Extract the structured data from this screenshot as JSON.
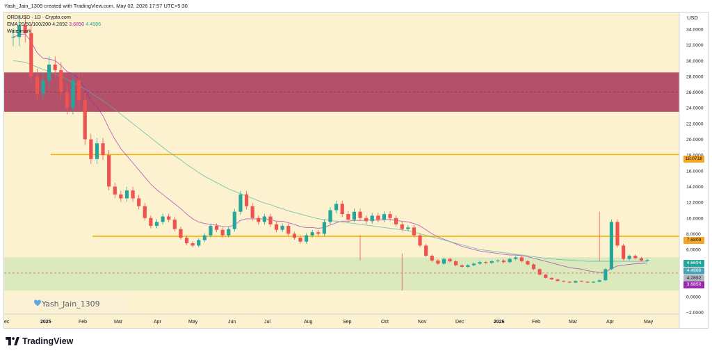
{
  "header": {
    "text": "Yash_Jain_1309 created with TradingView.com, May 02, 2026 17:57 UTC+5:30"
  },
  "legend": {
    "symbol_line": "ORDIUSD · 1D · Crypto.com",
    "ema_label": "EMA 20/50/100/200",
    "ema_values": [
      "4.2892",
      "3.6850",
      "4.4986"
    ],
    "watermark_line": "Watermark"
  },
  "axis": {
    "currency": "USD",
    "y_ticks": [
      "34.0000",
      "32.0000",
      "30.0000",
      "28.0000",
      "26.0000",
      "24.0000",
      "22.0000",
      "20.0000",
      "18.0000",
      "16.0000",
      "14.0000",
      "12.0000",
      "10.0000",
      "8.0000",
      "6.0000",
      "4.0000",
      "2.0000",
      "0.0000",
      "−2.0000"
    ],
    "x_ticks": [
      "ec",
      "2025",
      "Feb",
      "Mar",
      "Apr",
      "May",
      "Jun",
      "Jul",
      "Aug",
      "Sep",
      "Oct",
      "Nov",
      "Dec",
      "2026",
      "Feb",
      "Mar",
      "Apr",
      "May"
    ]
  },
  "price_tags": [
    {
      "label": "18.0718",
      "color": "#f5a623",
      "text_color": "#131722"
    },
    {
      "label": "7.6809",
      "color": "#f5a623",
      "text_color": "#131722"
    },
    {
      "label": "4.6694",
      "color": "#26a69a",
      "text_color": "#ffffff"
    },
    {
      "label": "4.4986",
      "color": "#4aa3b5",
      "text_color": "#ffffff"
    },
    {
      "label": "4.2892",
      "color": "#b2b5be",
      "text_color": "#131722"
    },
    {
      "label": "3.6850",
      "color": "#9c27b0",
      "text_color": "#ffffff"
    }
  ],
  "watermark": {
    "text": "Yash_Jain_1309"
  },
  "brand": {
    "text": "TradingView"
  },
  "colors": {
    "background": "#fdf2d0",
    "resistance_zone": "#b5506a",
    "support_zone": "#d6e8b8",
    "level_line": "#f5b301",
    "candle_up": "#26a69a",
    "candle_down": "#ef5350"
  },
  "chart_data": {
    "type": "candlestick",
    "y_range": [
      -2,
      35
    ],
    "resistance_zone": [
      23.5,
      28.5
    ],
    "support_zone": [
      0.8,
      5.0
    ],
    "horizontal_levels": [
      18.0718,
      7.6809,
      3.0
    ],
    "close_series": [
      33.0,
      34.5,
      33.5,
      28.0,
      25.8,
      27.5,
      29.5,
      28.8,
      26.0,
      24.0,
      27.5,
      25.0,
      20.0,
      17.5,
      19.5,
      18.0,
      14.0,
      13.0,
      12.5,
      13.5,
      12.5,
      11.5,
      10.0,
      9.0,
      9.5,
      10.2,
      9.8,
      8.6,
      7.5,
      6.8,
      6.5,
      7.2,
      7.8,
      9.0,
      8.5,
      7.8,
      8.6,
      10.8,
      13.0,
      11.5,
      10.0,
      9.5,
      10.2,
      9.2,
      8.5,
      9.0,
      8.0,
      7.5,
      7.0,
      7.8,
      8.2,
      8.0,
      9.5,
      11.0,
      11.8,
      10.5,
      9.8,
      10.8,
      10.0,
      9.6,
      10.3,
      9.8,
      10.5,
      10.0,
      9.2,
      8.6,
      8.8,
      7.8,
      6.5,
      5.2,
      4.6,
      4.2,
      4.8,
      4.5,
      4.0,
      3.8,
      4.0,
      4.2,
      4.4,
      4.3,
      4.5,
      4.6,
      4.4,
      4.8,
      5.0,
      4.5,
      4.1,
      3.5,
      2.8,
      2.4,
      2.2,
      2.0,
      1.9,
      1.8,
      2.0,
      1.9,
      1.8,
      1.9,
      2.1,
      3.5,
      9.5,
      6.5,
      4.8,
      5.2,
      4.9,
      4.6,
      4.67
    ],
    "ema_20_series": [
      33.0,
      33.3,
      33.4,
      32.4,
      31.0,
      30.3,
      30.2,
      30.0,
      29.4,
      28.6,
      28.3,
      27.7,
      26.4,
      24.9,
      24.1,
      23.0,
      21.4,
      20.0,
      18.8,
      17.9,
      17.0,
      16.1,
      15.2,
      14.3,
      13.6,
      13.0,
      12.4,
      11.8,
      11.2,
      10.5,
      9.9,
      9.5,
      9.3,
      9.2,
      9.1,
      8.9,
      8.9,
      9.1,
      9.7,
      9.9,
      9.9,
      9.9,
      9.9,
      9.8,
      9.6,
      9.6,
      9.4,
      9.2,
      8.9,
      8.8,
      8.8,
      8.7,
      8.8,
      9.1,
      9.4,
      9.6,
      9.6,
      9.7,
      9.7,
      9.7,
      9.8,
      9.7,
      9.8,
      9.8,
      9.7,
      9.6,
      9.5,
      9.3,
      9.0,
      8.5,
      8.0,
      7.6,
      7.3,
      7.0,
      6.7,
      6.4,
      6.2,
      6.0,
      5.8,
      5.7,
      5.6,
      5.5,
      5.4,
      5.3,
      5.3,
      5.2,
      5.1,
      4.9,
      4.7,
      4.5,
      4.3,
      4.1,
      3.9,
      3.7,
      3.6,
      3.5,
      3.3,
      3.2,
      3.1,
      3.1,
      3.6,
      3.9,
      4.0,
      4.1,
      4.2,
      4.24,
      4.29
    ],
    "ema_200_series": [
      30.0,
      29.9,
      29.8,
      29.5,
      29.2,
      28.9,
      28.6,
      28.3,
      28.0,
      27.6,
      27.2,
      26.8,
      26.4,
      25.9,
      25.4,
      24.9,
      24.4,
      23.8,
      23.2,
      22.6,
      22.0,
      21.4,
      20.8,
      20.2,
      19.6,
      19.0,
      18.4,
      17.9,
      17.4,
      16.8,
      16.3,
      15.8,
      15.3,
      14.9,
      14.5,
      14.1,
      13.7,
      13.4,
      13.1,
      12.8,
      12.5,
      12.2,
      11.9,
      11.7,
      11.4,
      11.2,
      10.9,
      10.7,
      10.5,
      10.3,
      10.1,
      9.9,
      9.8,
      9.7,
      9.6,
      9.5,
      9.4,
      9.3,
      9.2,
      9.1,
      9.0,
      8.9,
      8.8,
      8.7,
      8.6,
      8.5,
      8.4,
      8.2,
      8.0,
      7.8,
      7.6,
      7.4,
      7.2,
      7.0,
      6.8,
      6.6,
      6.4,
      6.2,
      6.0,
      5.9,
      5.8,
      5.7,
      5.6,
      5.5,
      5.4,
      5.3,
      5.2,
      5.1,
      5.0,
      4.9,
      4.8,
      4.75,
      4.7,
      4.65,
      4.6,
      4.55,
      4.5,
      4.5,
      4.5,
      4.5,
      4.5,
      4.5,
      4.5,
      4.5,
      4.5,
      4.5,
      4.4986
    ]
  }
}
